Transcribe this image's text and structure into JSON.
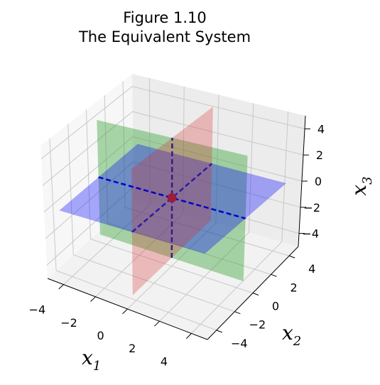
{
  "chart_data": {
    "type": "3d-surface",
    "title": "Figure 1.10",
    "subtitle": "The Equivalent System",
    "axes": {
      "x": {
        "label": "x",
        "label_sub": "1",
        "ticks": [
          "−4",
          "−2",
          "0",
          "2",
          "4"
        ],
        "range": [
          -5,
          5
        ]
      },
      "y": {
        "label": "x",
        "label_sub": "2",
        "ticks": [
          "−4",
          "−2",
          "0",
          "2",
          "4"
        ],
        "range": [
          -5,
          5
        ]
      },
      "z": {
        "label": "x",
        "label_sub": "3",
        "ticks": [
          "−4",
          "−2",
          "0",
          "2",
          "4"
        ],
        "range": [
          -5,
          5
        ]
      }
    },
    "grid": true,
    "planes": [
      {
        "name": "x3 = 0",
        "color": "#0000ff",
        "opacity": 0.33
      },
      {
        "name": "x2 = 0",
        "color": "#2ca02c",
        "opacity": 0.4
      },
      {
        "name": "x1 = 0",
        "color": "#d62728",
        "opacity": 0.28
      }
    ],
    "intersection_lines": [
      {
        "along": "x1",
        "color": "#0000cc",
        "style": "dashed"
      },
      {
        "along": "x2",
        "color": "#2a1aa8",
        "style": "dashed"
      },
      {
        "along": "x3",
        "color": "#3a1a88",
        "style": "dashed"
      }
    ],
    "points": [
      {
        "x1": 0,
        "x2": 0,
        "x3": 0,
        "color": "#9b1c3c"
      }
    ]
  }
}
